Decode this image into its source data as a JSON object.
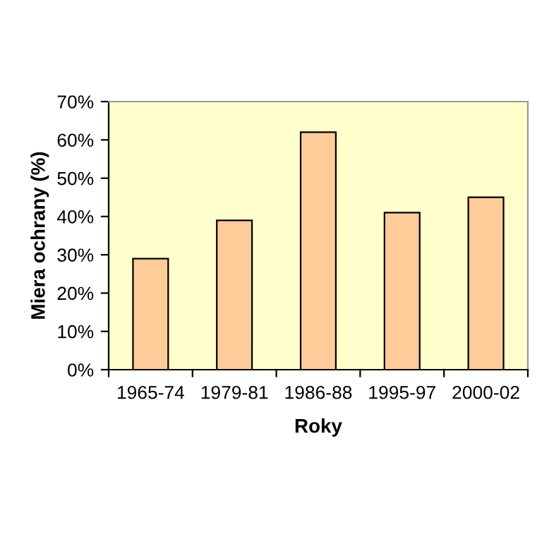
{
  "chart_data": {
    "type": "bar",
    "xlabel": "Roky",
    "ylabel": "Miera ochrany (%)",
    "categories": [
      "1965-74",
      "1979-81",
      "1986-88",
      "1995-97",
      "2000-02"
    ],
    "values": [
      29,
      39,
      62,
      41,
      45
    ],
    "color": "#ffcc99",
    "ylim": [
      0,
      70
    ],
    "yticks": [
      {
        "value": 0,
        "label": "0%"
      },
      {
        "value": 10,
        "label": "10%"
      },
      {
        "value": 20,
        "label": "20%"
      },
      {
        "value": 30,
        "label": "30%"
      },
      {
        "value": 40,
        "label": "40%"
      },
      {
        "value": 50,
        "label": "50%"
      },
      {
        "value": 60,
        "label": "60%"
      },
      {
        "value": 70,
        "label": "70%"
      }
    ],
    "grid": false,
    "legend": false
  }
}
